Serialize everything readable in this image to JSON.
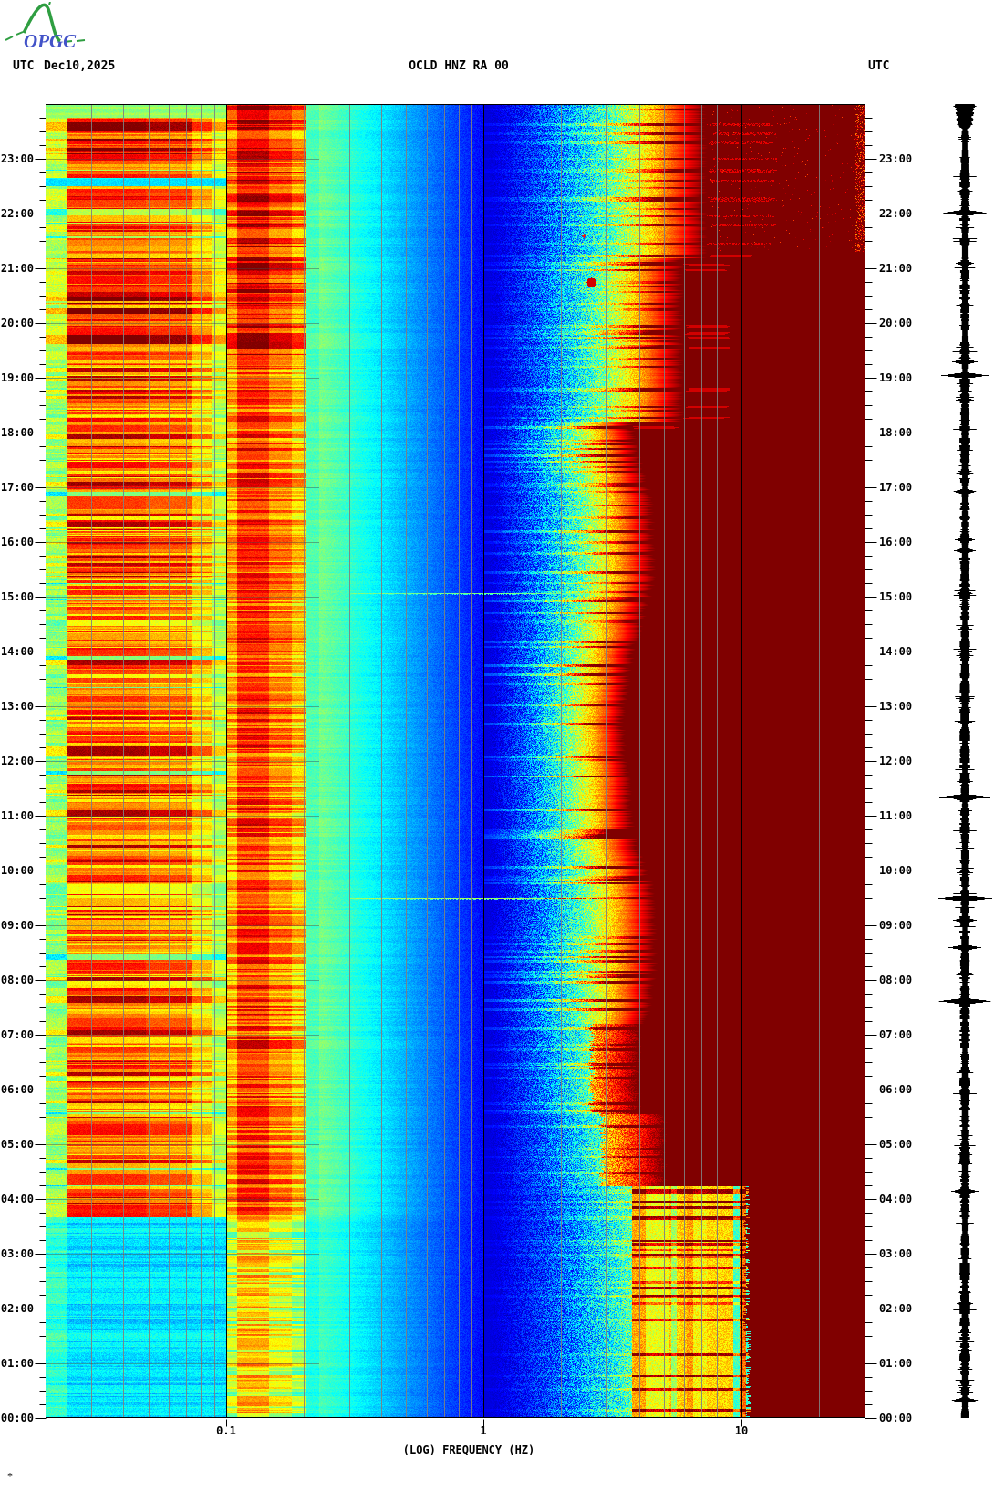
{
  "header": {
    "utc_left": "UTC",
    "date": "Dec10,2025",
    "title": "OCLD HNZ RA 00",
    "utc_right": "UTC"
  },
  "logo": {
    "text": "OPGC",
    "text_color": "#4353c8",
    "curve_color": "#2f9e41"
  },
  "footnote": "*",
  "x_axis": {
    "label": "(LOG) FREQUENCY (HZ)",
    "ticks": [
      "0.1",
      "1",
      "10"
    ]
  },
  "y_axis": {
    "hours": [
      "00:00",
      "01:00",
      "02:00",
      "03:00",
      "04:00",
      "05:00",
      "06:00",
      "07:00",
      "08:00",
      "09:00",
      "10:00",
      "11:00",
      "12:00",
      "13:00",
      "14:00",
      "15:00",
      "16:00",
      "17:00",
      "18:00",
      "19:00",
      "20:00",
      "21:00",
      "22:00",
      "23:00"
    ]
  },
  "chart_data": {
    "type": "heatmap",
    "subtype": "seismic-spectrogram-24h",
    "station": "OCLD HNZ RA 00",
    "date_utc": "Dec10,2025",
    "colormap": "jet",
    "x": {
      "scale": "log",
      "unit": "Hz",
      "min": 0.02,
      "max": 30,
      "ticks": [
        0.1,
        1,
        10
      ],
      "minor_gridlines_hz": [
        0.03,
        0.04,
        0.05,
        0.06,
        0.07,
        0.08,
        0.09,
        0.2,
        0.3,
        0.4,
        0.5,
        0.6,
        0.7,
        0.8,
        0.9,
        2,
        3,
        4,
        5,
        6,
        7,
        8,
        9,
        20
      ],
      "label": "(LOG) FREQUENCY (HZ)"
    },
    "y": {
      "unit": "hours UTC",
      "bottom": "00:00",
      "top": "24:00",
      "minor_tick_min": 15,
      "major_tick_min": 60
    },
    "bands": [
      {
        "name": "long-period-block",
        "f_hz": [
          0.02,
          0.1
        ],
        "level_day": 0.7,
        "level_night": 0.3,
        "note": "yellow-red horizontal banding 03:40-24:00, blue-cyan 00:00-03:40, sporadic red lines 03:40-05:15"
      },
      {
        "name": "microseism-peak",
        "f_hz": [
          0.1,
          0.2
        ],
        "level_day": 0.8,
        "level_night": 0.6,
        "note": "strongest (dark red) 19:00-24:00"
      },
      {
        "name": "notch",
        "f_hz": [
          0.2,
          0.25
        ],
        "level": 0.42
      },
      {
        "name": "quiet-trough",
        "f_hz": [
          0.3,
          1.5
        ],
        "level": 0.12
      },
      {
        "name": "diurnal-noise-ramp",
        "f_hz": [
          1.5,
          8
        ],
        "note": "cyan-yellow-red edge near 4 Hz by day, 7-8 Hz at night; striped vertical columns 00:00-04:15; bright red patch 04:15-07:00"
      },
      {
        "name": "saturated-high-frequency",
        "f_hz": [
          8,
          30
        ],
        "level": 1.0,
        "note": "solid dark red, speckled near right edge 21:30-24:00"
      }
    ],
    "events": [
      {
        "type": "broadband_line",
        "time_utc": "15:04",
        "t_hours": 15.07,
        "f_hz": [
          0.3,
          3.0
        ],
        "strength": 0.46
      },
      {
        "type": "broadband_line",
        "time_utc": "09:30",
        "t_hours": 9.5,
        "f_hz": [
          0.3,
          4.5
        ],
        "hot_f_hz": [
          1.7,
          3.6
        ],
        "strength": 0.5
      },
      {
        "type": "spot",
        "time_utc": "20:45",
        "t_hours": 20.75,
        "f_hz": 2.6,
        "radius_px": 5,
        "strength": 0.92
      },
      {
        "type": "spot",
        "time_utc": "21:36",
        "t_hours": 21.6,
        "f_hz": 2.45,
        "radius_px": 2,
        "strength": 0.85
      },
      {
        "type": "cultural_noise_onset",
        "time_utc": "03:40",
        "t_hours": 3.67
      }
    ],
    "trace": {
      "color": "#000000",
      "spikes_t_hours": [
        [
          22.02,
          25
        ],
        [
          21.1,
          10
        ],
        [
          19.05,
          26
        ],
        [
          19.3,
          14
        ],
        [
          18.6,
          10
        ],
        [
          16.93,
          13
        ],
        [
          16.05,
          11
        ],
        [
          15.85,
          12
        ],
        [
          15.07,
          9
        ],
        [
          11.35,
          28
        ],
        [
          9.5,
          30
        ],
        [
          9.1,
          13
        ],
        [
          8.6,
          18
        ],
        [
          8.12,
          10
        ],
        [
          7.62,
          30
        ],
        [
          6.2,
          8
        ],
        [
          4.15,
          15
        ],
        [
          2.1,
          9
        ],
        [
          0.33,
          15
        ]
      ]
    }
  }
}
